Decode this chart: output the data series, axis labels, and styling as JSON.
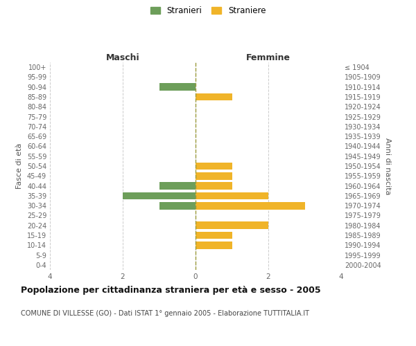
{
  "age_groups": [
    "100+",
    "95-99",
    "90-94",
    "85-89",
    "80-84",
    "75-79",
    "70-74",
    "65-69",
    "60-64",
    "55-59",
    "50-54",
    "45-49",
    "40-44",
    "35-39",
    "30-34",
    "25-29",
    "20-24",
    "15-19",
    "10-14",
    "5-9",
    "0-4"
  ],
  "birth_years": [
    "≤ 1904",
    "1905-1909",
    "1910-1914",
    "1915-1919",
    "1920-1924",
    "1925-1929",
    "1930-1934",
    "1935-1939",
    "1940-1944",
    "1945-1949",
    "1950-1954",
    "1955-1959",
    "1960-1964",
    "1965-1969",
    "1970-1974",
    "1975-1979",
    "1980-1984",
    "1985-1989",
    "1990-1994",
    "1995-1999",
    "2000-2004"
  ],
  "maschi": [
    0,
    0,
    1,
    0,
    0,
    0,
    0,
    0,
    0,
    0,
    0,
    0,
    1,
    2,
    1,
    0,
    0,
    0,
    0,
    0,
    0
  ],
  "femmine": [
    0,
    0,
    0,
    1,
    0,
    0,
    0,
    0,
    0,
    0,
    1,
    1,
    1,
    2,
    3,
    0,
    2,
    1,
    1,
    0,
    0
  ],
  "maschi_color": "#6d9e5a",
  "femmine_color": "#f0b429",
  "background_color": "#ffffff",
  "grid_color": "#cccccc",
  "title": "Popolazione per cittadinanza straniera per età e sesso - 2005",
  "subtitle": "COMUNE DI VILLESSE (GO) - Dati ISTAT 1° gennaio 2005 - Elaborazione TUTTITALIA.IT",
  "xlabel_left": "Maschi",
  "xlabel_right": "Femmine",
  "ylabel_left": "Fasce di età",
  "ylabel_right": "Anni di nascita",
  "legend_stranieri": "Stranieri",
  "legend_straniere": "Straniere",
  "xlim": 4,
  "bar_height": 0.75
}
